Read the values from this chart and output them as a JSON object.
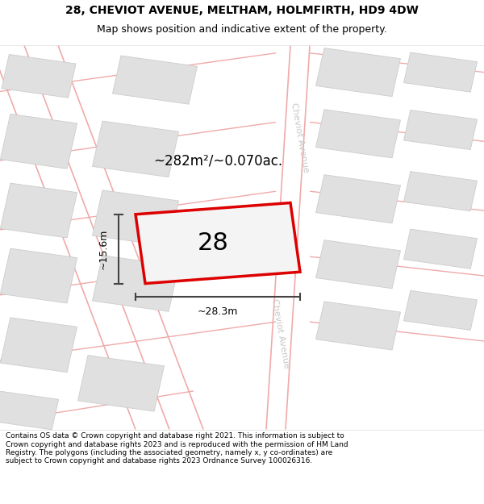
{
  "title_line1": "28, CHEVIOT AVENUE, MELTHAM, HOLMFIRTH, HD9 4DW",
  "title_line2": "Map shows position and indicative extent of the property.",
  "footer_text": "Contains OS data © Crown copyright and database right 2021. This information is subject to Crown copyright and database rights 2023 and is reproduced with the permission of HM Land Registry. The polygons (including the associated geometry, namely x, y co-ordinates) are subject to Crown copyright and database rights 2023 Ordnance Survey 100026316.",
  "area_label": "~282m²/~0.070ac.",
  "width_label": "~28.3m",
  "height_label": "~15.6m",
  "plot_number": "28",
  "street_name": "Cheviot Avenue",
  "map_bg": "#ffffff",
  "road_color": "#f0aaaa",
  "building_color": "#e0e0e0",
  "building_edge": "#cccccc",
  "plot_fill": "#f4f4f4",
  "plot_edge": "#dd0000",
  "street_label_color": "#c8c8c8",
  "dim_color": "#444444",
  "title_fontsize": 10,
  "subtitle_fontsize": 9,
  "footer_fontsize": 6.5,
  "area_fontsize": 12,
  "plot_num_fontsize": 22,
  "dim_fontsize": 9,
  "street_fontsize": 8,
  "plot_lw": 2.5
}
